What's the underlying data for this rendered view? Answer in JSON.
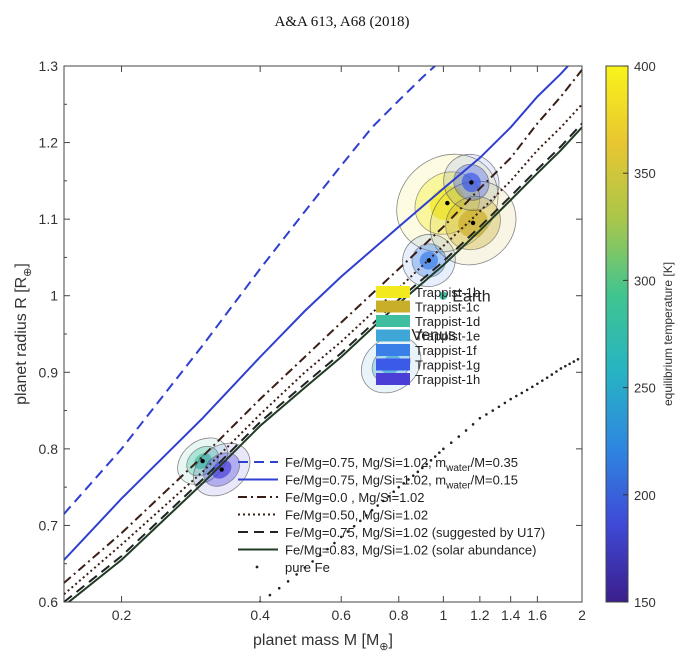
{
  "header": {
    "text": "A&A 613, A68 (2018)"
  },
  "chart_data": {
    "type": "line",
    "xlabel": "planet mass M [M",
    "xlabel_sub": "⊕",
    "xlabel_close": "]",
    "ylabel": "planet radius R [R",
    "ylabel_sub": "⊕",
    "ylabel_close": "]",
    "xscale": "log",
    "xlim": [
      0.15,
      2.0
    ],
    "ylim": [
      0.6,
      1.3
    ],
    "xticks": [
      0.2,
      0.4,
      0.6,
      0.8,
      1,
      1.2,
      1.4,
      1.6,
      2
    ],
    "xtick_labels": [
      "0.2",
      "0.4",
      "0.6",
      "0.8",
      "1",
      "1.2",
      "1.4",
      "1.6",
      "2"
    ],
    "yticks": [
      0.6,
      0.7,
      0.8,
      0.9,
      1.0,
      1.1,
      1.2,
      1.3
    ],
    "ytick_labels": [
      "0.6",
      "0.7",
      "0.8",
      "0.9",
      "1",
      "1.1",
      "1.2",
      "1.3"
    ],
    "series": [
      {
        "name": "Fe/Mg=0.75, Mg/Si=1.02, m",
        "sub": "water",
        "tail": "/M=0.35",
        "style": "dashed",
        "color": "#2f3fd0",
        "x": [
          0.15,
          0.2,
          0.3,
          0.4,
          0.5,
          0.6,
          0.7,
          0.8,
          0.9,
          1.0
        ],
        "y": [
          0.715,
          0.8,
          0.935,
          1.035,
          1.11,
          1.17,
          1.22,
          1.255,
          1.285,
          1.31
        ]
      },
      {
        "name": "Fe/Mg=0.75, Mg/Si=1.02, m",
        "sub": "water",
        "tail": "/M=0.15",
        "style": "solid",
        "color": "#2f3fd0",
        "x": [
          0.15,
          0.2,
          0.3,
          0.4,
          0.5,
          0.6,
          0.8,
          1.0,
          1.2,
          1.4,
          1.6,
          1.8,
          2.0
        ],
        "y": [
          0.655,
          0.735,
          0.84,
          0.92,
          0.98,
          1.025,
          1.09,
          1.14,
          1.18,
          1.22,
          1.26,
          1.29,
          1.32
        ]
      },
      {
        "name": "Fe/Mg=0.0 , Mg/Si=1.02",
        "sub": "",
        "tail": "",
        "style": "dashdot",
        "color": "#3a1e16",
        "x": [
          0.15,
          0.2,
          0.3,
          0.4,
          0.5,
          0.6,
          0.8,
          1.0,
          1.2,
          1.4,
          1.6,
          1.8,
          2.0
        ],
        "y": [
          0.625,
          0.69,
          0.79,
          0.865,
          0.92,
          0.965,
          1.035,
          1.09,
          1.14,
          1.18,
          1.225,
          1.26,
          1.295
        ]
      },
      {
        "name": "Fe/Mg=0.50, Mg/Si=1.02",
        "sub": "",
        "tail": "",
        "style": "dotted",
        "color": "#3a1e16",
        "x": [
          0.15,
          0.2,
          0.3,
          0.4,
          0.5,
          0.6,
          0.8,
          1.0,
          1.2,
          1.4,
          1.6,
          1.8,
          2.0
        ],
        "y": [
          0.61,
          0.675,
          0.77,
          0.845,
          0.9,
          0.94,
          1.01,
          1.065,
          1.11,
          1.15,
          1.19,
          1.22,
          1.25
        ]
      },
      {
        "name": "Fe/Mg=0.75, Mg/Si=1.02 (suggested by U17)",
        "sub": "",
        "tail": "",
        "style": "dashed",
        "color": "#222222",
        "x": [
          0.15,
          0.2,
          0.3,
          0.4,
          0.5,
          0.6,
          0.8,
          1.0,
          1.2,
          1.4,
          1.6,
          1.8,
          2.0
        ],
        "y": [
          0.6,
          0.66,
          0.76,
          0.835,
          0.885,
          0.925,
          0.995,
          1.045,
          1.09,
          1.13,
          1.165,
          1.195,
          1.225
        ]
      },
      {
        "name": "Fe/Mg=0.83, Mg/Si=1.02 (solar abundance)",
        "sub": "",
        "tail": "",
        "style": "solid",
        "color": "#1f3b24",
        "x": [
          0.15,
          0.2,
          0.3,
          0.4,
          0.5,
          0.6,
          0.8,
          1.0,
          1.2,
          1.4,
          1.6,
          1.8,
          2.0
        ],
        "y": [
          0.595,
          0.655,
          0.755,
          0.83,
          0.88,
          0.92,
          0.99,
          1.04,
          1.085,
          1.125,
          1.16,
          1.19,
          1.22
        ]
      },
      {
        "name": "pure Fe",
        "sub": "",
        "tail": "",
        "style": "sparse-dots",
        "color": "#222222",
        "x": [
          0.4,
          0.5,
          0.6,
          0.7,
          0.8,
          0.9,
          1.0,
          1.2,
          1.4,
          1.6,
          1.8,
          2.0
        ],
        "y": [
          0.6,
          0.645,
          0.685,
          0.72,
          0.75,
          0.775,
          0.8,
          0.84,
          0.865,
          0.885,
          0.905,
          0.92
        ]
      }
    ],
    "planets": [
      {
        "name": "Trappist-1b",
        "mass": 1.02,
        "radius": 1.121,
        "teq": 400,
        "color": "#f2ea1c",
        "spread_m": 0.28,
        "spread_r": 0.08
      },
      {
        "name": "Trappist-1c",
        "mass": 1.16,
        "radius": 1.095,
        "teq": 342,
        "color": "#c9ae2a",
        "spread_m": 0.26,
        "spread_r": 0.07
      },
      {
        "name": "Trappist-1d",
        "mass": 0.3,
        "radius": 0.784,
        "teq": 288,
        "color": "#3fbfa0",
        "spread_m": 0.04,
        "spread_r": 0.035
      },
      {
        "name": "Trappist-1e",
        "mass": 0.77,
        "radius": 0.91,
        "teq": 251,
        "color": "#3fa6d8",
        "spread_m": 0.12,
        "spread_r": 0.045
      },
      {
        "name": "Trappist-1f",
        "mass": 0.93,
        "radius": 1.046,
        "teq": 219,
        "color": "#3a7fe8",
        "spread_m": 0.12,
        "spread_r": 0.045
      },
      {
        "name": "Trappist-1g",
        "mass": 1.15,
        "radius": 1.148,
        "teq": 199,
        "color": "#3c5ae8",
        "spread_m": 0.15,
        "spread_r": 0.05
      },
      {
        "name": "Trappist-1h",
        "mass": 0.33,
        "radius": 0.773,
        "teq": 168,
        "color": "#4a3ed6",
        "spread_m": 0.05,
        "spread_r": 0.04
      }
    ],
    "annotations": [
      {
        "label": "Earth",
        "mass": 1.0,
        "radius": 1.0,
        "color": "#3fbfa0"
      },
      {
        "label": "Venus",
        "mass": 0.815,
        "radius": 0.95,
        "color": "#e8c82e"
      }
    ],
    "colorbar": {
      "label": "equilibrium temperature [K]",
      "range": [
        150,
        400
      ],
      "ticks": [
        150,
        200,
        250,
        300,
        350,
        400
      ],
      "tick_labels": [
        "150",
        "200",
        "250",
        "300",
        "350",
        "400"
      ],
      "colors": [
        "#3b1e8c",
        "#3f49d6",
        "#2e86e0",
        "#27b3c4",
        "#3fc590",
        "#a9c64a",
        "#e9c631",
        "#f8f41a"
      ]
    }
  }
}
